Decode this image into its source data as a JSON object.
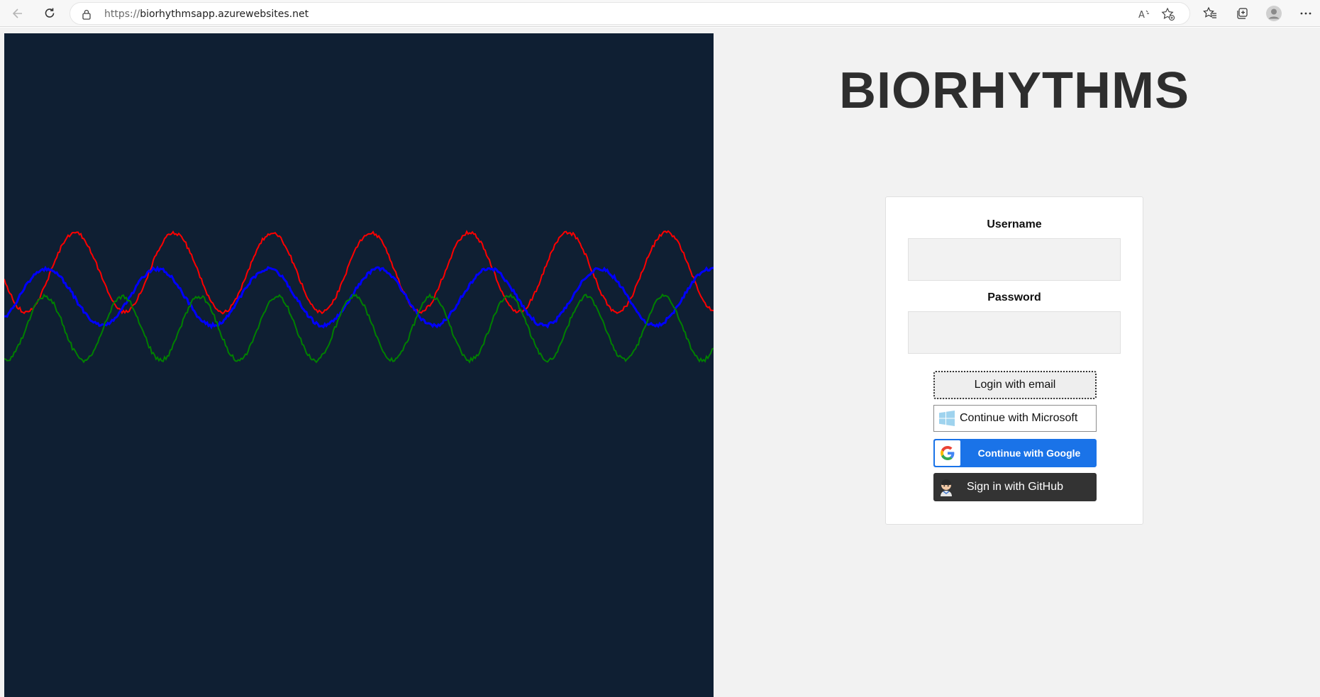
{
  "browser": {
    "url_protocol": "https://",
    "url_host": "biorhythmsapp.azurewebsites.net"
  },
  "app": {
    "title": "BIORHYTHMS"
  },
  "login": {
    "username_label": "Username",
    "password_label": "Password",
    "username_value": "",
    "password_value": "",
    "email_button": "Login with email",
    "microsoft_button": "Continue with Microsoft",
    "google_button": "Continue with Google",
    "github_button": "Sign in with GitHub"
  },
  "colors": {
    "wave_background": "#0f1f33",
    "physical": "#ff0000",
    "emotional": "#0000ff",
    "intellectual": "#008000",
    "google_blue": "#1a73e8",
    "github_dark": "#333333"
  }
}
